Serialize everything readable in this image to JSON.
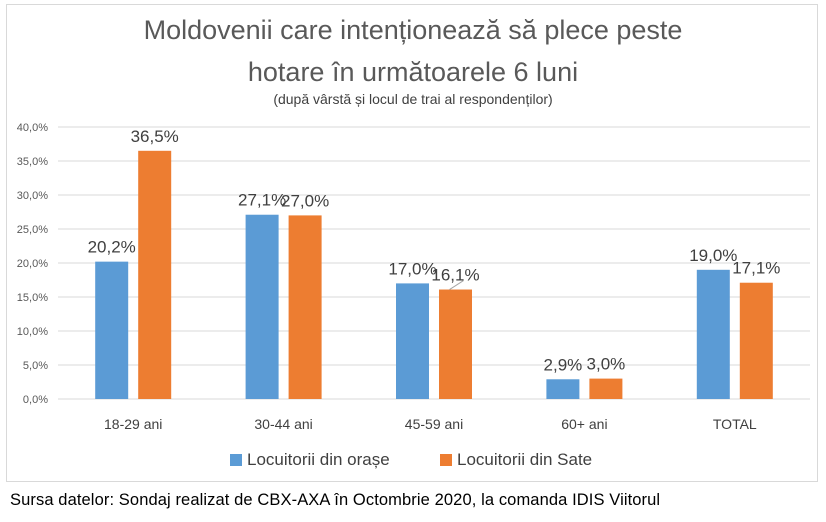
{
  "chart_data": {
    "type": "bar",
    "title": "Moldovenii care intenționează să plece peste hotare în următoarele 6 luni",
    "title_lines": [
      "Moldovenii care intenționează să plece peste",
      "hotare în următoarele 6 luni"
    ],
    "subtitle": "(după vârstă și locul de trai al respondenților)",
    "categories": [
      "18-29 ani",
      "30-44 ani",
      "45-59 ani",
      "60+ ani",
      "TOTAL"
    ],
    "series": [
      {
        "name": "Locuitorii din orașe",
        "color": "#5b9bd5",
        "values": [
          20.2,
          27.1,
          17.0,
          2.9,
          19.0
        ],
        "labels": [
          "20,2%",
          "27,1%",
          "17,0%",
          "2,9%",
          "19,0%"
        ]
      },
      {
        "name": "Locuitorii din Sate",
        "color": "#ed7d31",
        "values": [
          36.5,
          27.0,
          16.1,
          3.0,
          17.1
        ],
        "labels": [
          "36,5%",
          "27,0%",
          "16,1%",
          "3,0%",
          "17,1%"
        ]
      }
    ],
    "ylim": [
      0,
      40
    ],
    "yticks": [
      0,
      5,
      10,
      15,
      20,
      25,
      30,
      35,
      40
    ],
    "ytick_labels": [
      "0,0%",
      "5,0%",
      "10,0%",
      "15,0%",
      "20,0%",
      "25,0%",
      "30,0%",
      "35,0%",
      "40,0%"
    ],
    "xlabel": "",
    "ylabel": "",
    "grid": true,
    "legend_position": "bottom"
  },
  "source": "Sursa datelor: Sondaj realizat de CBX-AXA în Octombrie 2020, la comanda IDIS Viitorul"
}
